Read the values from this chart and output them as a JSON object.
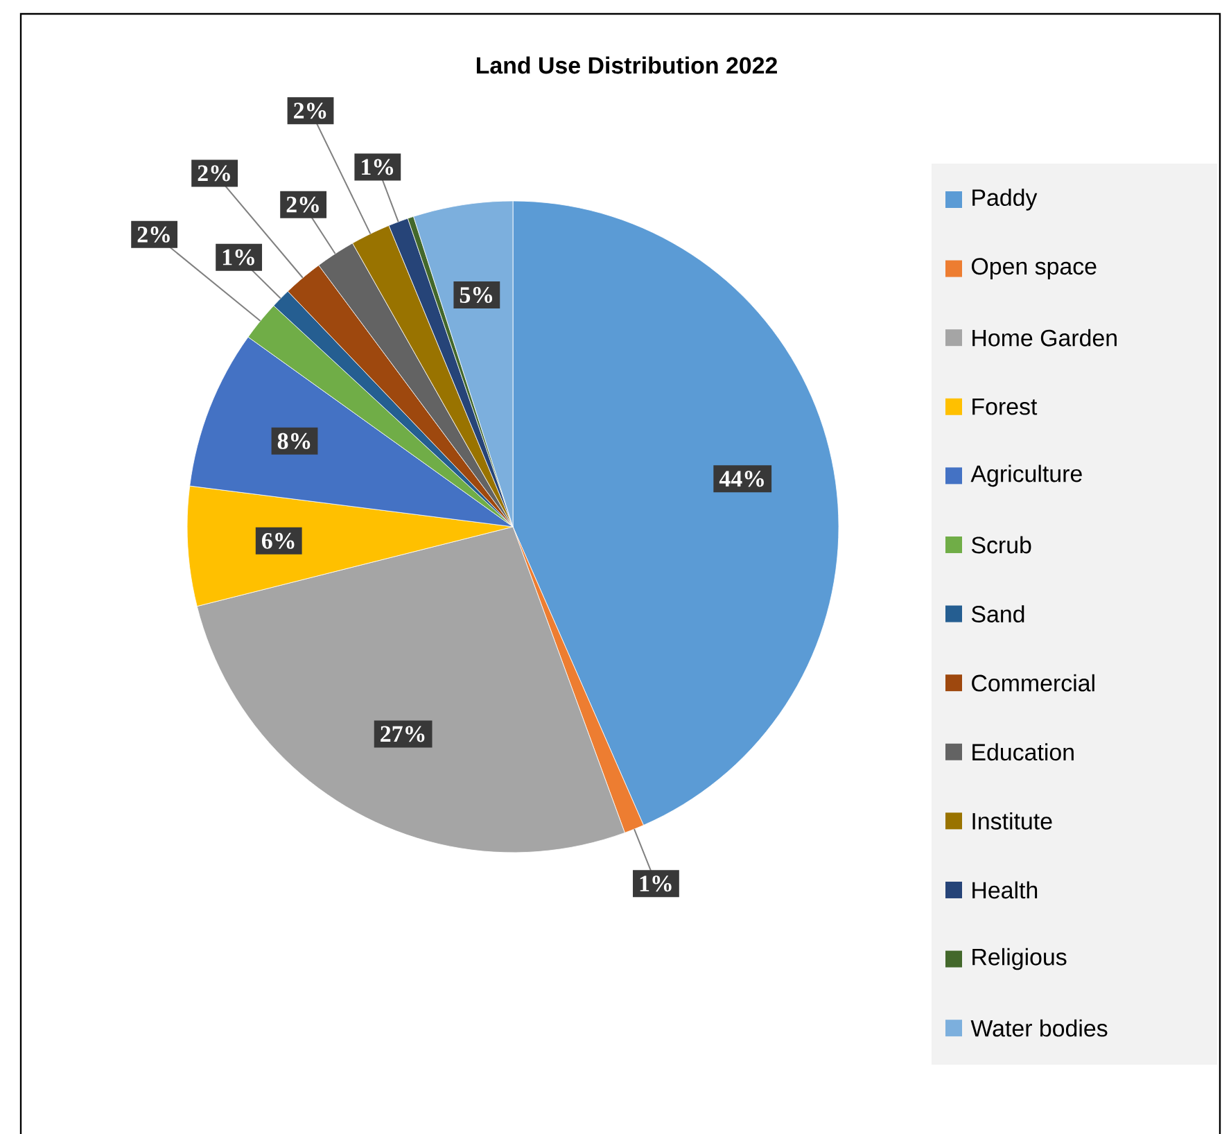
{
  "chart_data": {
    "type": "pie",
    "title": "Land Use Distribution 2022",
    "categories": [
      "Paddy",
      "Open space",
      "Home Garden",
      "Forest",
      "Agriculture",
      "Scrub",
      "Sand",
      "Commercial",
      "Education",
      "Institute",
      "Health",
      "Religious",
      "Water bodies"
    ],
    "values": [
      44,
      1,
      27,
      6,
      8,
      2,
      1,
      2,
      2,
      2,
      1,
      0.3,
      5
    ],
    "value_labels": [
      "44%",
      "1%",
      "27%",
      "6%",
      "8%",
      "2%",
      "1%",
      "2%",
      "2%",
      "2%",
      "1%",
      null,
      "5%"
    ],
    "colors": [
      "#5b9bd5",
      "#ed7d31",
      "#a5a5a5",
      "#ffc000",
      "#4472c4",
      "#70ad47",
      "#255e91",
      "#9e480e",
      "#636363",
      "#997300",
      "#264478",
      "#43682b",
      "#7cafdd"
    ],
    "legend": "right"
  }
}
